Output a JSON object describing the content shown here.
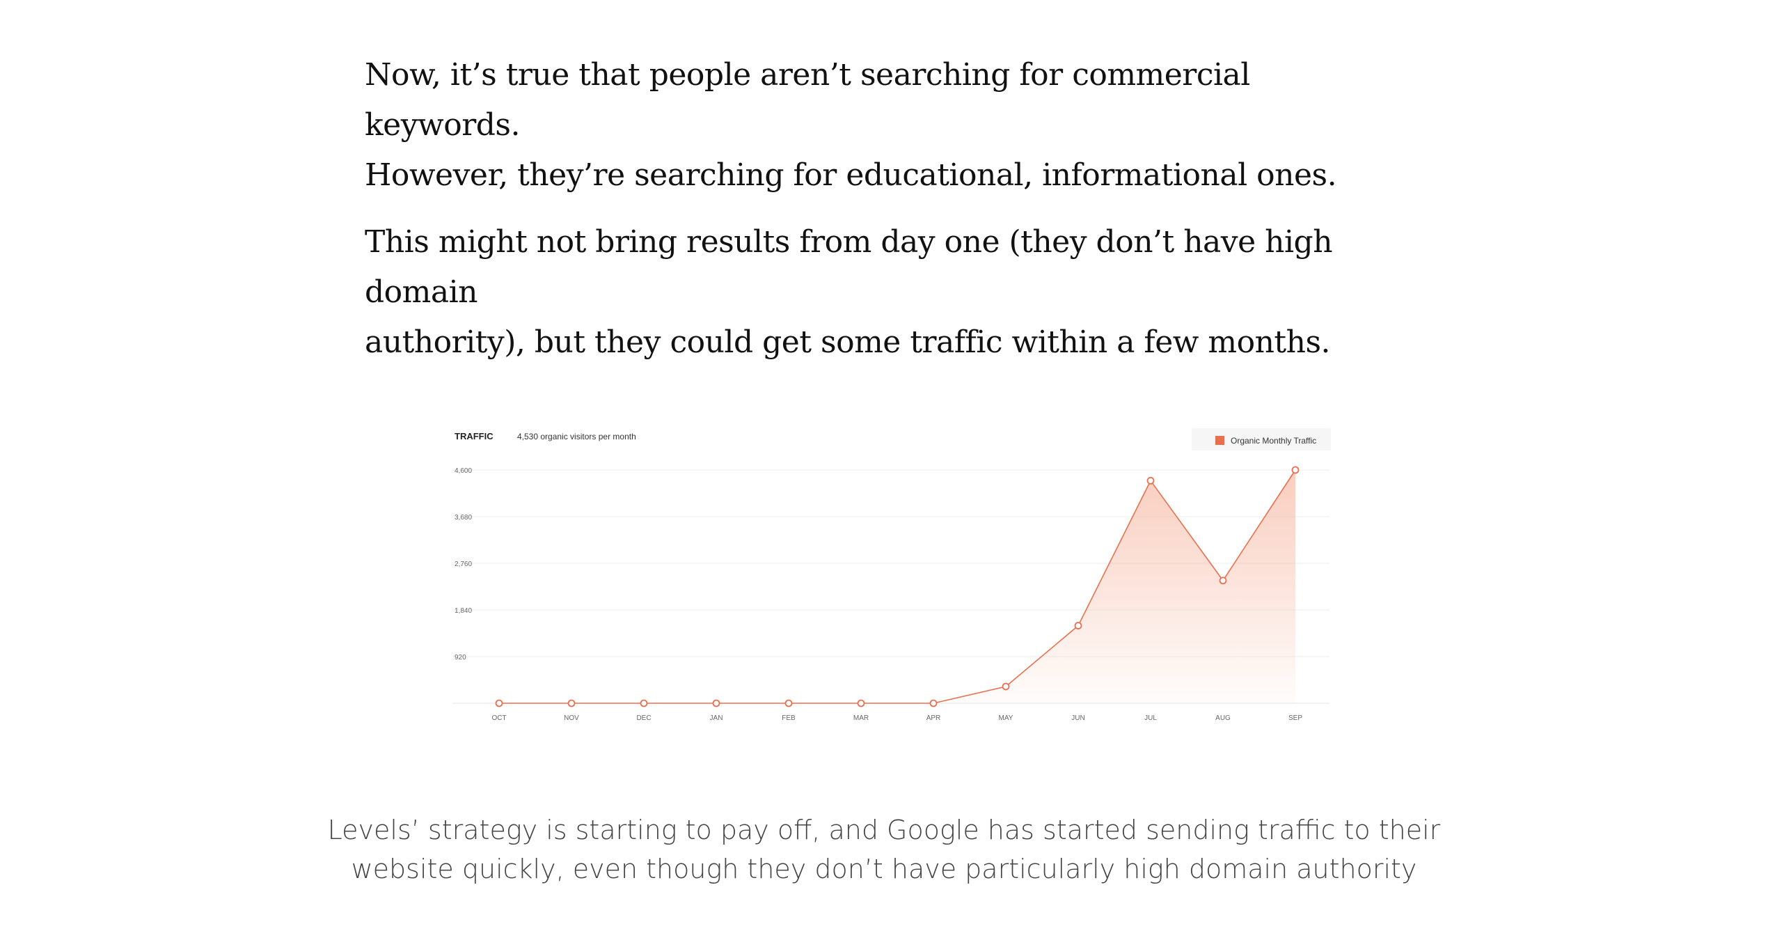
{
  "article": {
    "paragraphs": [
      {
        "line1": "Now, it’s true that people aren’t searching for commercial keywords.",
        "line2": "However, they’re searching for educational, informational ones."
      },
      {
        "line1": "This might not bring results from day one (they don’t have high domain",
        "line2": "authority), but they could get some traffic within a few months."
      }
    ]
  },
  "chart_header": {
    "title": "TRAFFIC",
    "subtitle": "4,530 organic visitors per month"
  },
  "colors": {
    "series": "#E8704F",
    "fill": "#F4A58A",
    "grid": "#EEEEEE",
    "legend_bg": "#F6F6F6"
  },
  "chart_data": {
    "type": "area",
    "title": "TRAFFIC",
    "subtitle": "4,530 organic visitors per month",
    "categories": [
      "OCT",
      "NOV",
      "DEC",
      "JAN",
      "FEB",
      "MAR",
      "APR",
      "MAY",
      "JUN",
      "JUL",
      "AUG",
      "SEP"
    ],
    "series": [
      {
        "name": "Organic Monthly Traffic",
        "values": [
          0,
          0,
          0,
          0,
          0,
          0,
          0,
          330,
          1530,
          4390,
          2420,
          4600
        ]
      }
    ],
    "yticks": [
      "4,600",
      "3,680",
      "2,760",
      "1,840",
      "920"
    ],
    "ytick_values": [
      4600,
      3680,
      2760,
      1840,
      920
    ],
    "ylim": [
      0,
      4600
    ],
    "xlabel": "",
    "ylabel": "",
    "grid": true,
    "legend_position": "top-right"
  },
  "caption": {
    "line1": "Levels’ strategy is starting to pay off, and Google has started sending traffic to their",
    "line2": "website quickly, even though they don’t have particularly high domain authority"
  }
}
